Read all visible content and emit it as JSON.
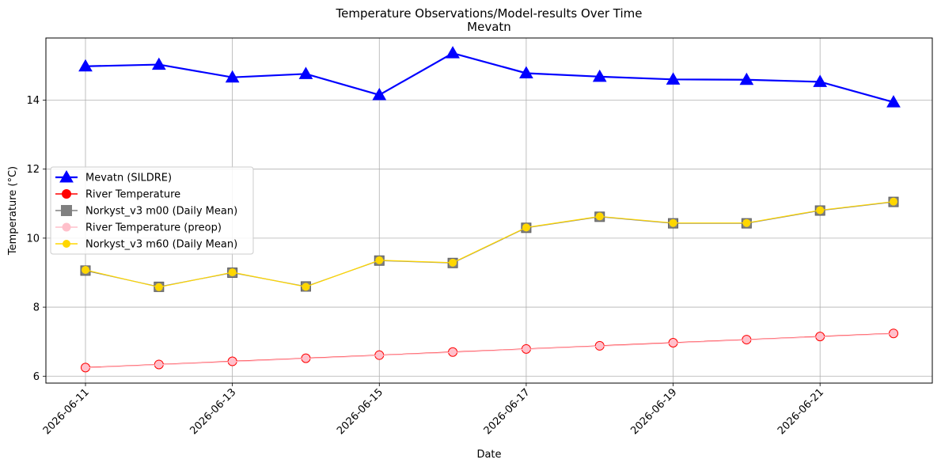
{
  "chart_data": {
    "type": "line",
    "title": "Temperature Observations/Model-results Over Time",
    "subtitle": "Mevatn",
    "xlabel": "Date",
    "ylabel": "Temperature (°C)",
    "x": [
      "2026-06-11",
      "2026-06-12",
      "2026-06-13",
      "2026-06-14",
      "2026-06-15",
      "2026-06-16",
      "2026-06-17",
      "2026-06-18",
      "2026-06-19",
      "2026-06-20",
      "2026-06-21",
      "2026-06-22"
    ],
    "xticks": [
      "2026-06-11",
      "2026-06-13",
      "2026-06-15",
      "2026-06-17",
      "2026-06-19",
      "2026-06-21"
    ],
    "yticks": [
      6,
      8,
      10,
      12,
      14
    ],
    "ylim": [
      5.8,
      15.8
    ],
    "grid": true,
    "legend_position": "center-left",
    "series": [
      {
        "name": "Mevatn (SILDRE)",
        "color": "#0000ff",
        "marker": "triangle",
        "values": [
          14.98,
          15.03,
          14.66,
          14.76,
          14.15,
          15.36,
          14.78,
          14.68,
          14.6,
          14.59,
          14.53,
          13.94
        ]
      },
      {
        "name": "River Temperature",
        "color": "#ff0000",
        "marker": "circle",
        "values": [
          6.25,
          6.34,
          6.43,
          6.52,
          6.61,
          6.7,
          6.79,
          6.88,
          6.97,
          7.06,
          7.15,
          7.24
        ]
      },
      {
        "name": "Norkyst_v3 m00 (Daily Mean)",
        "color": "#808080",
        "marker": "square",
        "values": [
          9.06,
          8.59,
          9.0,
          8.6,
          9.35,
          9.28,
          10.3,
          10.62,
          10.43,
          10.43,
          10.8,
          11.05
        ]
      },
      {
        "name": "River Temperature (preop)",
        "color": "#ffc0cb",
        "marker": "circle",
        "values": [
          6.24,
          6.33,
          6.42,
          6.51,
          6.6,
          6.69,
          6.78,
          6.87,
          6.96,
          7.05,
          7.14,
          7.23
        ]
      },
      {
        "name": "Norkyst_v3 m60 (Daily Mean)",
        "color": "#ffd700",
        "marker": "circle",
        "values": [
          9.08,
          8.58,
          9.01,
          8.59,
          9.36,
          9.29,
          10.31,
          10.63,
          10.44,
          10.44,
          10.81,
          11.06
        ]
      }
    ]
  }
}
